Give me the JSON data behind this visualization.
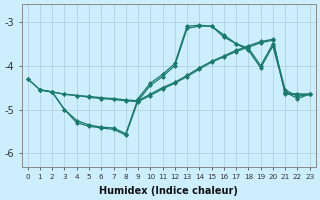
{
  "xlabel": "Humidex (Indice chaleur)",
  "background_color": "#cceeff",
  "grid_color": "#aaccdd",
  "line_color": "#1a7a6e",
  "xlim": [
    -0.5,
    23.5
  ],
  "ylim": [
    -6.3,
    -2.6
  ],
  "yticks": [
    -6,
    -5,
    -4,
    -3
  ],
  "xticks": [
    0,
    1,
    2,
    3,
    4,
    5,
    6,
    7,
    8,
    9,
    10,
    11,
    12,
    13,
    14,
    15,
    16,
    17,
    18,
    19,
    20,
    21,
    22,
    23
  ],
  "line1_x": [
    0,
    1,
    2,
    3,
    4,
    5,
    6,
    7,
    8,
    9,
    10,
    11,
    12,
    13,
    14,
    15,
    16,
    17,
    18,
    19,
    20,
    21,
    22,
    23
  ],
  "line1_y": [
    -4.3,
    -4.55,
    -4.6,
    -5.0,
    -5.25,
    -5.35,
    -5.4,
    -5.42,
    -5.55,
    -4.75,
    -4.4,
    -4.2,
    -3.95,
    -3.1,
    -3.08,
    -3.1,
    -3.3,
    -3.5,
    -3.6,
    -4.0,
    -3.5,
    -4.55,
    -4.7,
    -4.65
  ],
  "line2_x": [
    0,
    1,
    2,
    3,
    4,
    5,
    6,
    7,
    8,
    9,
    10,
    11,
    12,
    13,
    14,
    15,
    16,
    17,
    18,
    19,
    20,
    21,
    22,
    23
  ],
  "line2_y": [
    -4.3,
    -4.55,
    -4.6,
    -5.0,
    -5.3,
    -5.38,
    -5.42,
    -5.45,
    -5.58,
    -4.8,
    -4.45,
    -4.25,
    -4.0,
    -3.15,
    -3.1,
    -3.1,
    -3.35,
    -3.5,
    -3.65,
    -4.05,
    -3.55,
    -4.6,
    -4.75,
    -4.65
  ],
  "line3_x": [
    1,
    2,
    3,
    4,
    5,
    6,
    7,
    8,
    9,
    10,
    11,
    12,
    13,
    14,
    15,
    16,
    17,
    18,
    19,
    20,
    21,
    22,
    23
  ],
  "line3_y": [
    -4.55,
    -4.6,
    -4.65,
    -4.68,
    -4.7,
    -4.73,
    -4.75,
    -4.78,
    -4.8,
    -4.65,
    -4.5,
    -4.38,
    -4.22,
    -4.05,
    -3.9,
    -3.78,
    -3.65,
    -3.55,
    -3.45,
    -3.4,
    -4.65,
    -4.65,
    -4.65
  ],
  "line4_x": [
    1,
    2,
    3,
    4,
    5,
    6,
    7,
    8,
    9,
    10,
    11,
    12,
    13,
    14,
    15,
    16,
    17,
    18,
    19,
    20,
    21,
    22,
    23
  ],
  "line4_y": [
    -4.55,
    -4.6,
    -4.65,
    -4.68,
    -4.72,
    -4.75,
    -4.77,
    -4.8,
    -4.82,
    -4.68,
    -4.53,
    -4.4,
    -4.25,
    -4.08,
    -3.92,
    -3.8,
    -3.68,
    -3.58,
    -3.48,
    -3.42,
    -4.62,
    -4.65,
    -4.65
  ]
}
